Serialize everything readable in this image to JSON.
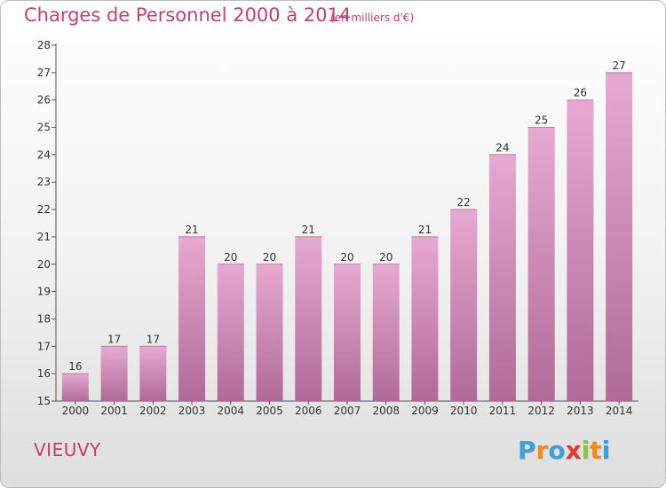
{
  "header": {
    "title": "Charges de Personnel 2000 à 2014",
    "subtitle": "(en milliers d'€)"
  },
  "footer": {
    "commune": "VIEUVY",
    "logo": {
      "letters": [
        "P",
        "r",
        "o",
        "x",
        "i",
        "t",
        "i"
      ],
      "colors": [
        "#3aa0d8",
        "#f08a1c",
        "#3aa0d8",
        "#e23a2e",
        "#8cc63e",
        "#f08a1c",
        "#3aa0d8"
      ]
    }
  },
  "colors": {
    "bar_top": "#e6a9d0",
    "bar_bottom": "#b06a98",
    "text_accent": "#c04070"
  },
  "chart_data": {
    "type": "bar",
    "title": "Charges de Personnel 2000 à 2014",
    "subtitle": "(en milliers d'€)",
    "xlabel": "",
    "ylabel": "",
    "categories": [
      "2000",
      "2001",
      "2002",
      "2003",
      "2004",
      "2005",
      "2006",
      "2007",
      "2008",
      "2009",
      "2010",
      "2011",
      "2012",
      "2013",
      "2014"
    ],
    "values": [
      16,
      17,
      17,
      21,
      20,
      20,
      21,
      20,
      20,
      21,
      22,
      24,
      25,
      26,
      27
    ],
    "ylim": [
      15,
      28
    ],
    "yticks": [
      15,
      16,
      17,
      18,
      19,
      20,
      21,
      22,
      23,
      24,
      25,
      26,
      27,
      28
    ],
    "grid": false,
    "legend": "none"
  }
}
